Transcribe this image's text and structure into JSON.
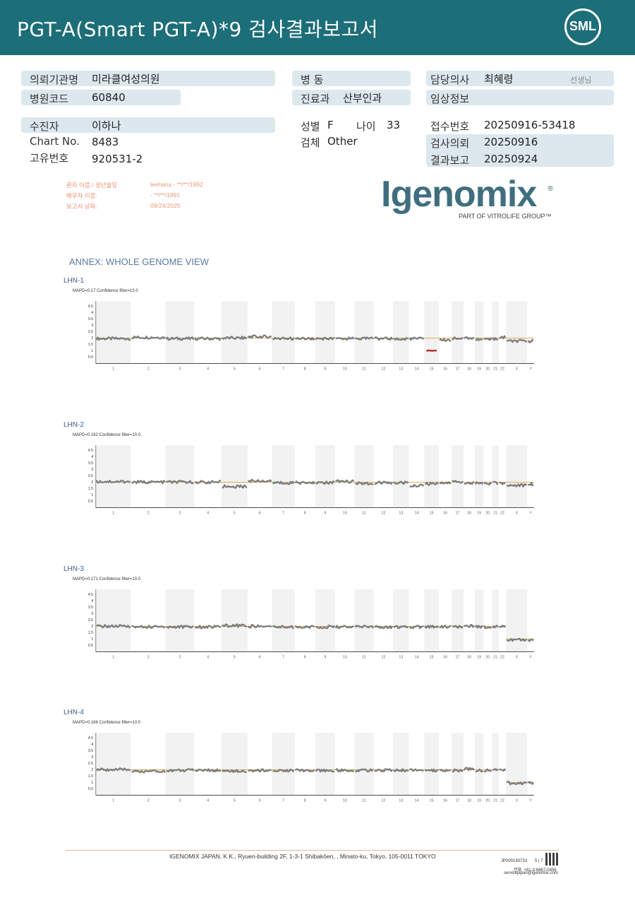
{
  "header": {
    "title": "PGT-A(Smart  PGT-A)*9 검사결과보고서",
    "logo": "SML"
  },
  "info": {
    "institution_label": "의뢰기관명",
    "institution": "미라클여성의원",
    "hospital_code_label": "병원코드",
    "hospital_code": "60840",
    "ward_label": "병   동",
    "ward": "",
    "dept_label": "진료과",
    "dept": "산부인과",
    "doctor_label": "담당의사",
    "doctor": "최혜령",
    "doctor_suffix": "선생님",
    "clinical_label": "임상정보",
    "clinical": "",
    "patient_label": "수진자",
    "patient": "이하나",
    "sex_label": "성별",
    "sex": "F",
    "age_label": "나이",
    "age": "33",
    "specimen_label": "검체",
    "specimen": "Other",
    "chart_label": "Chart No.",
    "chart": "8483",
    "unique_label": "고유번호",
    "unique": "920531-2",
    "receipt_label": "접수번호",
    "receipt": "20250916-53418",
    "request_label": "검사의뢰",
    "request": "20250916",
    "report_label": "결과보고",
    "report": "20250924"
  },
  "stamp": {
    "l1": "환자 이름 / 생년월일",
    "v1": "leehana - **/**/1992",
    "l2": "배우자 이름:",
    "v2": " - **/**/1991",
    "l3": "보고서 날짜:",
    "v3": "09/24/2025"
  },
  "brand": {
    "name": "Igenomix",
    "mark": "®",
    "sub": "PART OF VITROLIFE GROUP™"
  },
  "annex_title": "ANNEX: WHOLE GENOME VIEW",
  "chart_data": [
    {
      "type": "line",
      "title": "LHN-1",
      "subtitle": "MAPD=0.17 Confidence filter=10.0",
      "ylim": [
        0,
        5
      ],
      "yticks": [
        "4.5",
        "4",
        "3.5",
        "3",
        "2.5",
        "2",
        "1.5",
        "1",
        "0.5"
      ],
      "categories": [
        "1",
        "2",
        "3",
        "4",
        "5",
        "6",
        "7",
        "8",
        "9",
        "10",
        "11",
        "12",
        "13",
        "14",
        "15",
        "16",
        "17",
        "18",
        "19",
        "20",
        "21",
        "22",
        "X",
        "Y"
      ],
      "reference": [
        2,
        2,
        2,
        2,
        2,
        2,
        2,
        2,
        2,
        2,
        2,
        2,
        2,
        2,
        2,
        2,
        2,
        2,
        2,
        2,
        2,
        2,
        2,
        2
      ],
      "values": [
        1.95,
        2.05,
        1.95,
        1.95,
        2.0,
        2.1,
        1.95,
        1.95,
        1.95,
        1.95,
        1.95,
        1.95,
        1.9,
        1.95,
        1.0,
        1.85,
        1.95,
        2.0,
        1.9,
        1.9,
        1.95,
        2.05,
        1.75,
        1.75
      ],
      "highlight": [
        14
      ]
    },
    {
      "type": "line",
      "title": "LHN-2",
      "subtitle": "MAPD=0.192 Confidence filter=10.0",
      "ylim": [
        0,
        5
      ],
      "yticks": [
        "4.5",
        "4",
        "3.5",
        "3",
        "2.5",
        "2",
        "1.5",
        "1",
        "0.5"
      ],
      "categories": [
        "1",
        "2",
        "3",
        "4",
        "5",
        "6",
        "7",
        "8",
        "9",
        "10",
        "11",
        "12",
        "13",
        "14",
        "15",
        "16",
        "17",
        "18",
        "19",
        "20",
        "21",
        "22",
        "X",
        "Y"
      ],
      "reference": [
        2,
        2,
        2,
        2,
        2,
        2,
        2,
        2,
        2,
        2,
        2,
        2,
        2,
        2,
        2,
        2,
        2,
        2,
        2,
        2,
        2,
        2,
        2,
        2
      ],
      "values": [
        2.05,
        2.0,
        2.0,
        2.0,
        1.65,
        2.1,
        1.95,
        1.95,
        1.95,
        2.05,
        1.9,
        1.95,
        1.95,
        1.75,
        1.85,
        1.95,
        2.05,
        1.95,
        1.9,
        1.9,
        1.95,
        1.9,
        1.75,
        1.85
      ],
      "highlight": []
    },
    {
      "type": "line",
      "title": "LHN-3",
      "subtitle": "MAPD=0.171 Confidence filter=10.0",
      "ylim": [
        0,
        5
      ],
      "yticks": [
        "4.5",
        "4",
        "3.5",
        "3",
        "2.5",
        "2",
        "1.5",
        "1",
        "0.5"
      ],
      "categories": [
        "1",
        "2",
        "3",
        "4",
        "5",
        "6",
        "7",
        "8",
        "9",
        "10",
        "11",
        "12",
        "13",
        "14",
        "15",
        "16",
        "17",
        "18",
        "19",
        "20",
        "21",
        "22",
        "X",
        "Y"
      ],
      "reference": [
        2,
        2,
        2,
        2,
        2,
        2,
        2,
        2,
        2,
        2,
        2,
        2,
        2,
        2,
        2,
        2,
        2,
        2,
        2,
        2,
        2,
        2,
        1,
        1
      ],
      "values": [
        2.0,
        1.95,
        1.95,
        1.95,
        2.05,
        2.0,
        1.95,
        1.95,
        1.95,
        1.95,
        1.95,
        1.95,
        1.95,
        1.95,
        1.95,
        1.95,
        1.95,
        2.0,
        1.95,
        1.95,
        1.95,
        1.95,
        0.95,
        0.9
      ],
      "highlight": []
    },
    {
      "type": "line",
      "title": "LHN-4",
      "subtitle": "MAPD=0.166 Confidence filter=10.0",
      "ylim": [
        0,
        5
      ],
      "yticks": [
        "4.5",
        "4",
        "3.5",
        "3",
        "2.5",
        "2",
        "1.5",
        "1",
        "0.5"
      ],
      "categories": [
        "1",
        "2",
        "3",
        "4",
        "5",
        "6",
        "7",
        "8",
        "9",
        "10",
        "11",
        "12",
        "13",
        "14",
        "15",
        "16",
        "17",
        "18",
        "19",
        "20",
        "21",
        "22",
        "X",
        "Y"
      ],
      "reference": [
        2,
        2,
        2,
        2,
        2,
        2,
        2,
        2,
        2,
        2,
        2,
        2,
        2,
        2,
        2,
        2,
        2,
        2,
        2,
        2,
        2,
        2,
        1,
        1
      ],
      "values": [
        2.0,
        1.85,
        1.95,
        1.95,
        1.9,
        1.95,
        1.95,
        1.95,
        1.95,
        1.95,
        1.95,
        1.95,
        1.95,
        1.95,
        1.95,
        1.95,
        1.95,
        2.05,
        1.95,
        1.95,
        1.95,
        1.95,
        0.95,
        0.95
      ],
      "highlight": []
    }
  ],
  "footer": {
    "address": "IGENOMIX JAPAN, K.K., Ryuen-building 2F, 1-3-1 Shibakōen, , Minato-ku, Tokyo, 105-0011 TOKYO",
    "doc_id": "JP000193733",
    "page": "5 | 7",
    "phone": "전화: +81-3-6667-0456",
    "email": "servicejapan@igenomix.com"
  }
}
